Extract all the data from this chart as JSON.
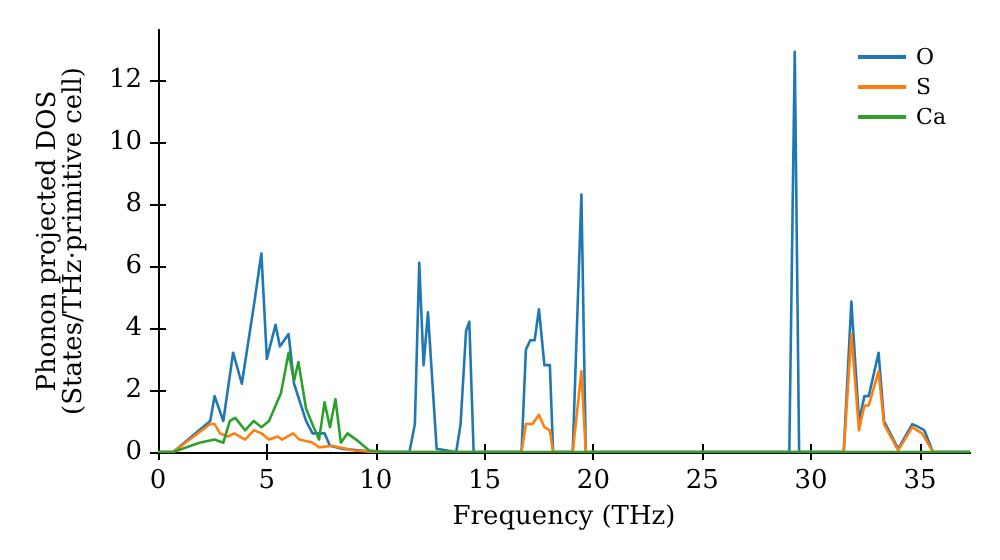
{
  "chart_data": {
    "type": "line",
    "xlabel": "Frequency (THz)",
    "ylabel": "Phonon projected DOS\n(States/THz·primitive cell)",
    "xlim": [
      0,
      37.3
    ],
    "xticks": [
      0,
      5,
      10,
      15,
      20,
      25,
      30,
      35
    ],
    "ylim": [
      0,
      13.6
    ],
    "yticks": [
      0,
      2,
      4,
      6,
      8,
      10,
      12
    ],
    "legend": "top right",
    "grid": false,
    "marker": "none",
    "line_style": "solid",
    "series": [
      {
        "name": "O",
        "color": "#1f77b4",
        "x": [
          0,
          0.7,
          2.4,
          2.6,
          3.0,
          3.45,
          3.85,
          4.4,
          4.75,
          5.0,
          5.4,
          5.6,
          6.0,
          6.25,
          6.8,
          7.1,
          7.65,
          7.9,
          8.5,
          10,
          11.55,
          11.8,
          12.0,
          12.2,
          12.4,
          12.8,
          13.7,
          13.9,
          14.15,
          14.3,
          14.5,
          16.7,
          16.9,
          17.1,
          17.3,
          17.5,
          17.75,
          18.0,
          18.15,
          19.05,
          19.45,
          19.65,
          29.0,
          29.25,
          29.45,
          31.5,
          31.85,
          32.2,
          32.45,
          32.65,
          33.1,
          33.35,
          34.0,
          34.65,
          34.95,
          35.2,
          35.6,
          37.3
        ],
        "values": [
          0,
          0,
          1.0,
          1.8,
          1.0,
          3.2,
          2.2,
          4.7,
          6.4,
          3.0,
          4.1,
          3.4,
          3.8,
          2.2,
          1.0,
          0.6,
          0.6,
          0.2,
          0.1,
          0,
          0,
          0.9,
          6.1,
          2.8,
          4.5,
          0.1,
          0,
          0.9,
          3.9,
          4.2,
          0,
          0,
          3.3,
          3.6,
          3.6,
          4.6,
          2.8,
          2.8,
          0,
          0,
          8.3,
          0,
          0,
          12.9,
          0,
          0,
          4.85,
          1.0,
          1.8,
          1.8,
          3.2,
          1.0,
          0.1,
          0.9,
          0.8,
          0.7,
          0,
          0
        ]
      },
      {
        "name": "S",
        "color": "#ff7f0e",
        "x": [
          0,
          0.7,
          2.4,
          2.6,
          2.85,
          3.2,
          3.5,
          4.0,
          4.4,
          4.75,
          5.1,
          5.5,
          5.7,
          6.2,
          6.5,
          7.1,
          7.4,
          8.0,
          9.0,
          10,
          16.7,
          16.9,
          17.2,
          17.5,
          17.75,
          18.0,
          18.15,
          19.05,
          19.45,
          19.65,
          31.5,
          31.85,
          32.2,
          32.45,
          32.65,
          33.1,
          33.35,
          34.0,
          34.65,
          35.1,
          35.6,
          37.3
        ],
        "values": [
          0,
          0,
          0.9,
          0.9,
          0.6,
          0.5,
          0.6,
          0.4,
          0.7,
          0.6,
          0.4,
          0.5,
          0.4,
          0.6,
          0.4,
          0.3,
          0.15,
          0.2,
          0.05,
          0,
          0,
          0.9,
          0.9,
          1.2,
          0.8,
          0.7,
          0,
          0,
          2.6,
          0,
          0,
          3.8,
          0.7,
          1.5,
          1.5,
          2.6,
          0.9,
          0.05,
          0.8,
          0.6,
          0,
          0
        ]
      },
      {
        "name": "Ca",
        "color": "#2ca02c",
        "x": [
          0,
          0.7,
          1.9,
          2.6,
          3.0,
          3.3,
          3.55,
          4.0,
          4.4,
          4.75,
          5.1,
          5.65,
          6.0,
          6.25,
          6.45,
          6.8,
          7.15,
          7.4,
          7.65,
          7.9,
          8.15,
          8.4,
          8.7,
          9.1,
          9.7,
          10.5,
          37.3
        ],
        "values": [
          0,
          0,
          0.3,
          0.4,
          0.3,
          1.0,
          1.1,
          0.7,
          1.0,
          0.8,
          1.0,
          1.9,
          3.2,
          2.3,
          2.9,
          1.4,
          0.8,
          0.4,
          1.6,
          0.8,
          1.7,
          0.3,
          0.6,
          0.4,
          0.05,
          0,
          0
        ]
      }
    ]
  }
}
